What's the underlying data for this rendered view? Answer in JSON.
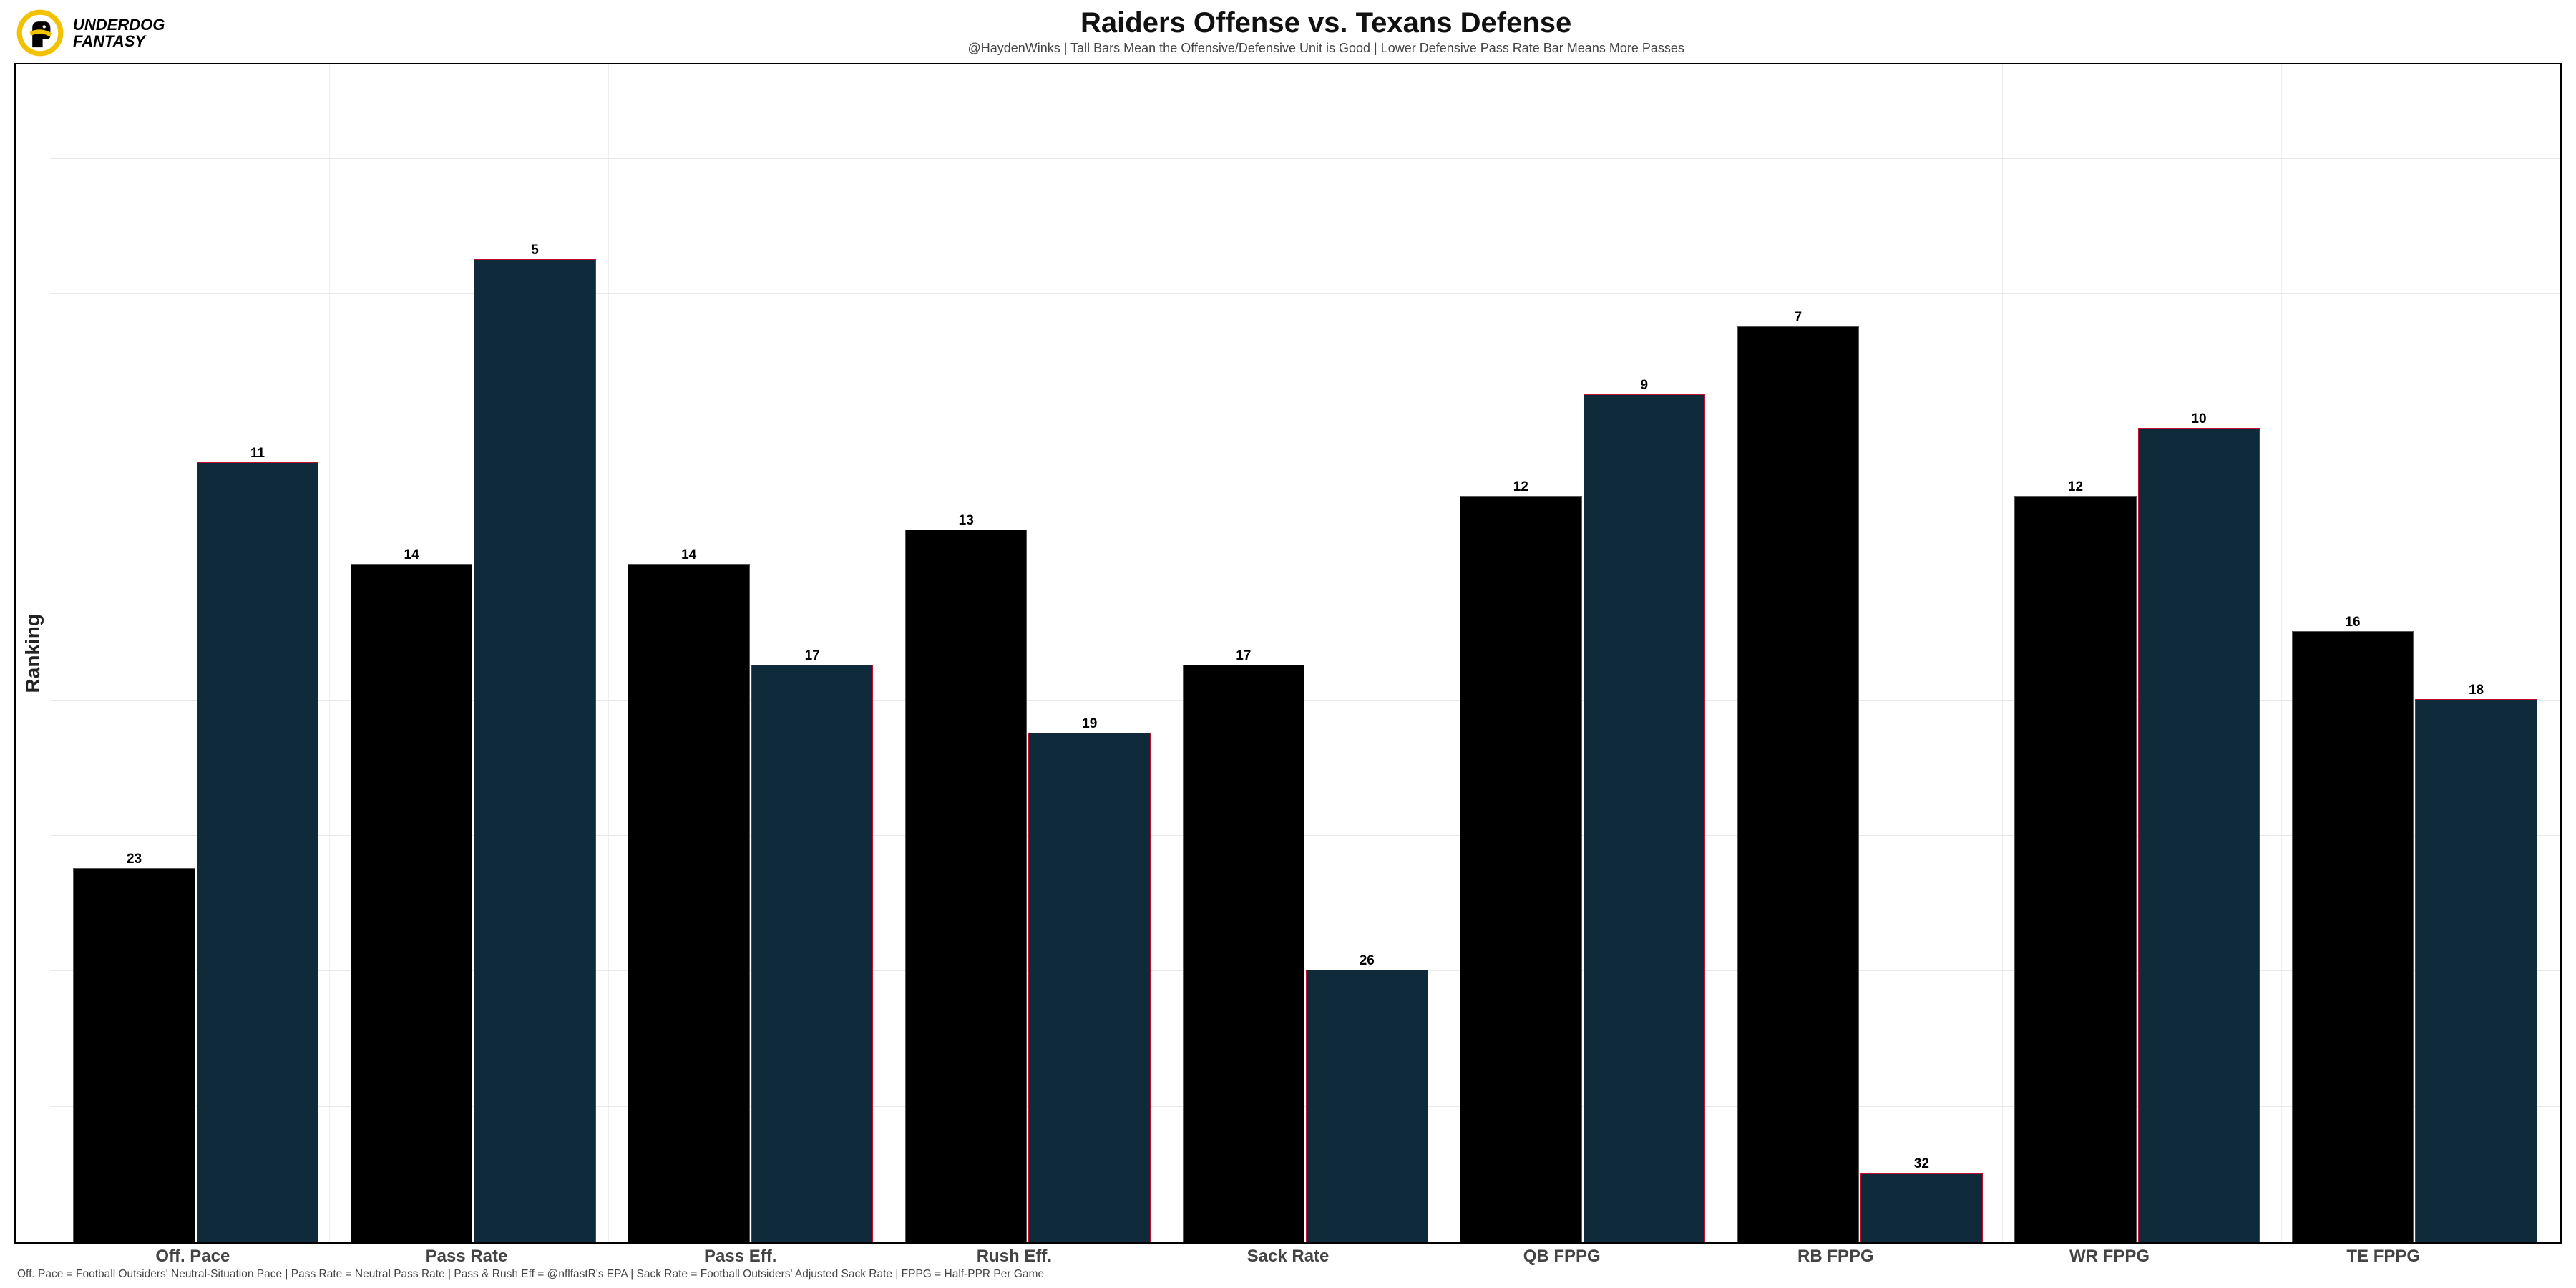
{
  "brand": {
    "line1": "UNDERDOG",
    "line2": "FANTASY",
    "logo_ring_color": "#f2c100",
    "logo_fill": "#000000",
    "logo_scarf": "#f2c100"
  },
  "chart": {
    "type": "grouped-bar",
    "title": "Raiders Offense vs. Texans Defense",
    "subtitle": "@HaydenWinks | Tall Bars Mean the Offensive/Defensive Unit is Good | Lower Defensive Pass Rate Bar Means More Passes",
    "ylabel": "Ranking",
    "title_fontsize": 40,
    "subtitle_fontsize": 18,
    "ylabel_fontsize": 28,
    "xtick_fontsize": 24,
    "barlabel_fontsize": 19,
    "background_color": "#ffffff",
    "frame_border_color": "#000000",
    "grid_color": "#e8e8e8",
    "rank_min": 1,
    "rank_max": 33,
    "series": [
      {
        "name": "Offense",
        "fill": "#000000",
        "border": "#555555"
      },
      {
        "name": "Defense",
        "fill": "#0f2a3a",
        "border": "#c01030"
      }
    ],
    "categories": [
      {
        "label": "Off. Pace",
        "offense": 23,
        "defense": 11
      },
      {
        "label": "Pass Rate",
        "offense": 14,
        "defense": 5
      },
      {
        "label": "Pass Eff.",
        "offense": 14,
        "defense": 17
      },
      {
        "label": "Rush Eff.",
        "offense": 13,
        "defense": 19
      },
      {
        "label": "Sack Rate",
        "offense": 17,
        "defense": 26
      },
      {
        "label": "QB FPPG",
        "offense": 12,
        "defense": 9
      },
      {
        "label": "RB FPPG",
        "offense": 7,
        "defense": 32
      },
      {
        "label": "WR FPPG",
        "offense": 12,
        "defense": 10
      },
      {
        "label": "TE FPPG",
        "offense": 16,
        "defense": 18
      }
    ],
    "footnote": "Off. Pace = Football Outsiders' Neutral-Situation Pace | Pass Rate = Neutral Pass Rate | Pass & Rush Eff = @nflfastR's EPA | Sack Rate = Football Outsiders' Adjusted Sack Rate | FPPG = Half-PPR Per Game"
  }
}
